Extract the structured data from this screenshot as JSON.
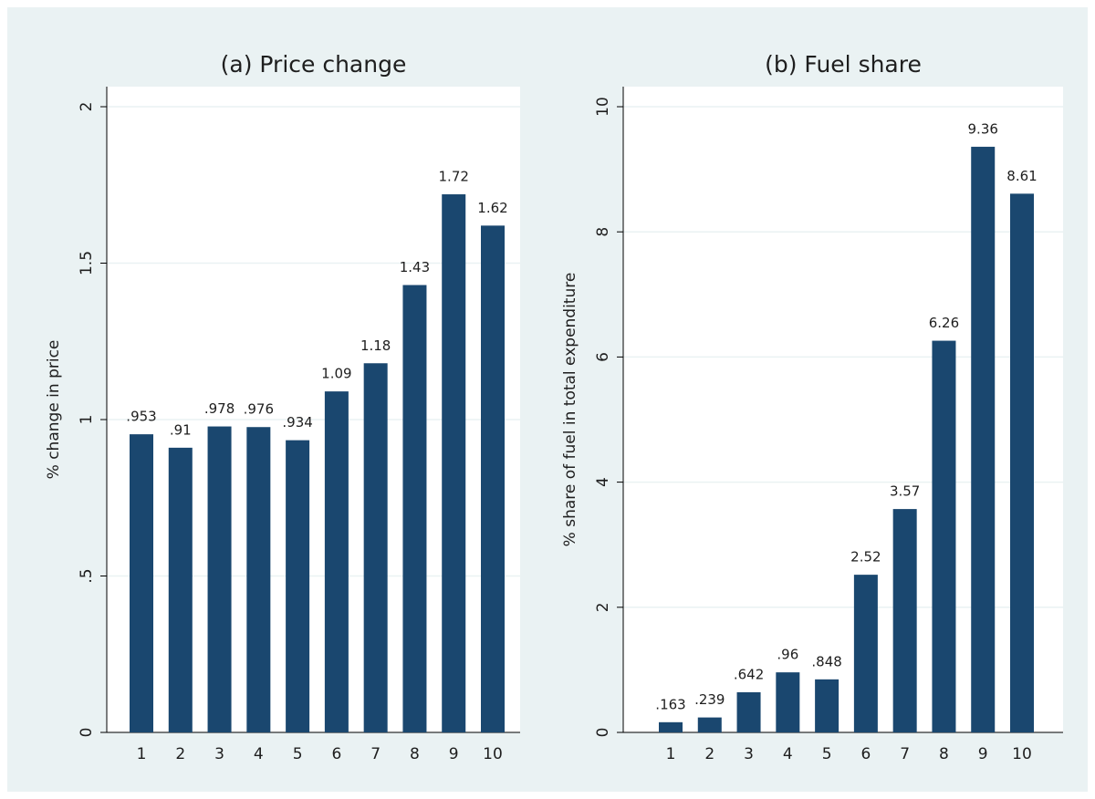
{
  "chart_data": [
    {
      "type": "bar",
      "title": "(a) Price change",
      "y_label": "% change in price",
      "categories": [
        "1",
        "2",
        "3",
        "4",
        "5",
        "6",
        "7",
        "8",
        "9",
        "10"
      ],
      "values": [
        0.953,
        0.91,
        0.978,
        0.976,
        0.934,
        1.09,
        1.18,
        1.43,
        1.72,
        1.62
      ],
      "value_labels": [
        ".953",
        ".91",
        ".978",
        ".976",
        ".934",
        "1.09",
        "1.18",
        "1.43",
        "1.72",
        "1.62"
      ],
      "color": "#1a476f",
      "ylim": [
        0,
        2
      ],
      "yticks": [
        0,
        {
          "value": 0.5,
          "label": ".5"
        },
        1,
        1.5,
        2
      ],
      "grid": true
    },
    {
      "type": "bar",
      "title": "(b) Fuel share",
      "y_label": "% share of fuel in total expenditure",
      "categories": [
        "1",
        "2",
        "3",
        "4",
        "5",
        "6",
        "7",
        "8",
        "9",
        "10"
      ],
      "values": [
        0.163,
        0.239,
        0.642,
        0.96,
        0.848,
        2.52,
        3.57,
        6.26,
        9.36,
        8.61
      ],
      "value_labels": [
        ".163",
        ".239",
        ".642",
        ".96",
        ".848",
        "2.52",
        "3.57",
        "6.26",
        "9.36",
        "8.61"
      ],
      "color": "#1a476f",
      "ylim": [
        0,
        10
      ],
      "yticks": [
        0,
        2,
        4,
        6,
        8,
        10
      ],
      "grid": true
    }
  ]
}
